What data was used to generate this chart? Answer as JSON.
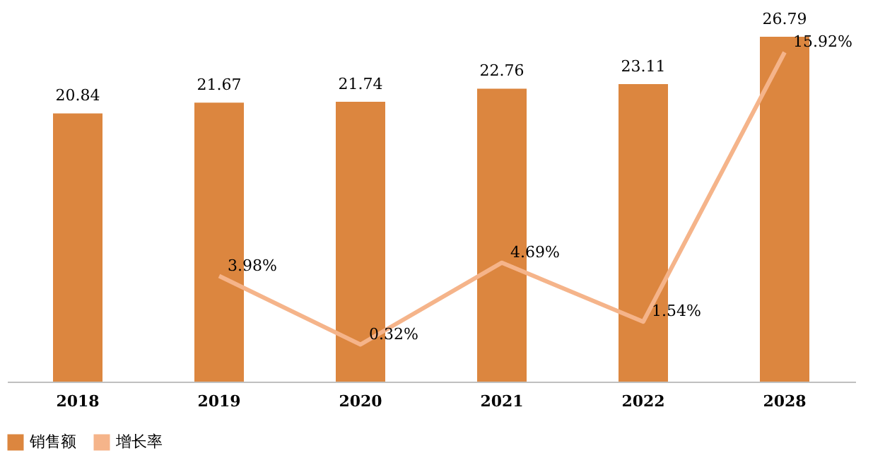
{
  "chart_data": {
    "type": "bar",
    "categories": [
      "2018",
      "2019",
      "2020",
      "2021",
      "2022",
      "2028"
    ],
    "series": [
      {
        "name": "销售额",
        "color": "#dc863f",
        "values": [
          20.84,
          21.67,
          21.74,
          22.76,
          23.11,
          26.79
        ]
      },
      {
        "name": "增长率",
        "type": "line",
        "axis": "y2",
        "color": "#f5b48a",
        "values": [
          null,
          3.98,
          0.32,
          4.69,
          1.54,
          15.92
        ],
        "value_labels": [
          null,
          "3.98%",
          "0.32%",
          "4.69%",
          "1.54%",
          "15.92%"
        ]
      }
    ],
    "data_labels": true,
    "tick_labels": "x",
    "grid": false,
    "legend": "bottom",
    "marker": "none",
    "line_style": "solid"
  }
}
